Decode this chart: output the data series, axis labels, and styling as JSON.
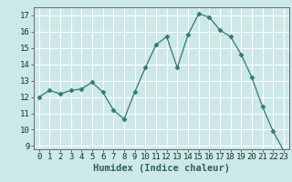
{
  "x": [
    0,
    1,
    2,
    3,
    4,
    5,
    6,
    7,
    8,
    9,
    10,
    11,
    12,
    13,
    14,
    15,
    16,
    17,
    18,
    19,
    20,
    21,
    22,
    23
  ],
  "y": [
    12.0,
    12.4,
    12.2,
    12.4,
    12.5,
    12.9,
    12.3,
    11.2,
    10.65,
    12.3,
    13.8,
    15.2,
    15.7,
    13.8,
    15.8,
    17.1,
    16.9,
    16.1,
    15.7,
    14.6,
    13.2,
    11.4,
    9.9,
    8.7
  ],
  "xlabel": "Humidex (Indice chaleur)",
  "xlim": [
    -0.5,
    23.5
  ],
  "ylim": [
    8.8,
    17.5
  ],
  "yticks": [
    9,
    10,
    11,
    12,
    13,
    14,
    15,
    16,
    17
  ],
  "xticks": [
    0,
    1,
    2,
    3,
    4,
    5,
    6,
    7,
    8,
    9,
    10,
    11,
    12,
    13,
    14,
    15,
    16,
    17,
    18,
    19,
    20,
    21,
    22,
    23
  ],
  "line_color": "#2e7d6e",
  "marker": "D",
  "marker_size": 2.5,
  "bg_color": "#cde8e8",
  "grid_color": "#ffffff",
  "label_fontsize": 7.5,
  "tick_fontsize": 6.5
}
